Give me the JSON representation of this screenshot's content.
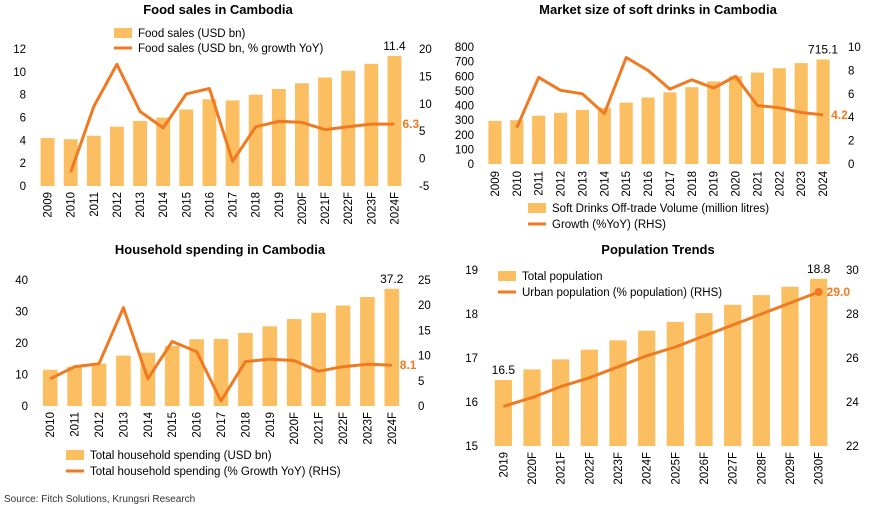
{
  "source": "Source: Fitch Solutions, Krungsri Research",
  "colors": {
    "bar": "#FBBF62",
    "line": "#F07A21",
    "label": "#F07A21",
    "text": "#000000"
  },
  "chart_data": [
    {
      "type": "bar",
      "title": "Food sales in Cambodia",
      "categories": [
        "2009",
        "2010",
        "2011",
        "2012",
        "2013",
        "2014",
        "2015",
        "2016",
        "2017",
        "2018",
        "2019",
        "2020F",
        "2021F",
        "2022F",
        "2023F",
        "2024F"
      ],
      "series": [
        {
          "name": "Food sales (USD bn)",
          "type": "bar",
          "axis": "left",
          "values": [
            4.2,
            4.1,
            4.4,
            5.2,
            5.7,
            6.0,
            6.7,
            7.6,
            7.5,
            8.0,
            8.5,
            9.0,
            9.5,
            10.1,
            10.7,
            11.4
          ]
        },
        {
          "name": "Food sales (USD bn, % growth YoY)",
          "type": "line",
          "axis": "right",
          "values": [
            null,
            -2.5,
            9.5,
            17.2,
            8.6,
            5.6,
            11.8,
            12.8,
            -0.5,
            5.8,
            6.8,
            6.6,
            5.3,
            5.8,
            6.3,
            6.3
          ]
        }
      ],
      "ylim_left": [
        0,
        12
      ],
      "yticks_left": [
        0,
        2,
        4,
        6,
        8,
        10,
        12
      ],
      "ylim_right": [
        -5,
        20
      ],
      "yticks_right": [
        -5,
        0,
        5,
        10,
        15,
        20
      ],
      "bar_end_label": "11.4",
      "line_end_label": "6.3",
      "legend_position": "top-center"
    },
    {
      "type": "bar",
      "title": "Market size of soft drinks in Cambodia",
      "categories": [
        "2009",
        "2010",
        "2011",
        "2012",
        "2013",
        "2014",
        "2015",
        "2016",
        "2017",
        "2018",
        "2019",
        "2020",
        "2021",
        "2022",
        "2023",
        "2024"
      ],
      "series": [
        {
          "name": "Soft Drinks Off-trade Volume (million litres)",
          "type": "bar",
          "axis": "left",
          "values": [
            295,
            300,
            330,
            350,
            370,
            385,
            420,
            455,
            490,
            525,
            565,
            600,
            625,
            655,
            690,
            715.1
          ]
        },
        {
          "name": "Growth (%YoY) (RHS)",
          "type": "line",
          "axis": "right",
          "values": [
            null,
            3.1,
            7.4,
            6.3,
            6.0,
            4.3,
            9.1,
            8.0,
            6.4,
            7.2,
            6.5,
            7.5,
            5.0,
            4.8,
            4.4,
            4.2
          ]
        }
      ],
      "ylim_left": [
        0,
        800
      ],
      "yticks_left": [
        0,
        100,
        200,
        300,
        400,
        500,
        600,
        700,
        800
      ],
      "ylim_right": [
        0,
        10
      ],
      "yticks_right": [
        0,
        2,
        4,
        6,
        8,
        10
      ],
      "bar_end_label": "715.1",
      "line_end_label": "4.2",
      "legend_position": "bottom"
    },
    {
      "type": "bar",
      "title": "Household spending in Cambodia",
      "categories": [
        "2010",
        "2011",
        "2012",
        "2013",
        "2014",
        "2015",
        "2016",
        "2017",
        "2018",
        "2019",
        "2020F",
        "2021F",
        "2022F",
        "2023F",
        "2024F"
      ],
      "series": [
        {
          "name": "Total household spending (USD bn)",
          "type": "bar",
          "axis": "left",
          "values": [
            11.5,
            12.5,
            13.5,
            16.0,
            16.9,
            19.1,
            21.2,
            21.3,
            23.2,
            25.3,
            27.6,
            29.6,
            31.9,
            34.6,
            37.2
          ]
        },
        {
          "name": "Total household spending (% Growth YoY) (RHS)",
          "type": "line",
          "axis": "right",
          "values": [
            5.4,
            7.8,
            8.4,
            19.5,
            5.4,
            12.8,
            10.8,
            1.0,
            8.8,
            9.3,
            9.0,
            6.9,
            7.8,
            8.3,
            8.1
          ]
        }
      ],
      "ylim_left": [
        0,
        40
      ],
      "yticks_left": [
        0,
        10,
        20,
        30,
        40
      ],
      "ylim_right": [
        0,
        25
      ],
      "yticks_right": [
        0,
        5,
        10,
        15,
        20,
        25
      ],
      "bar_end_label": "37.2",
      "line_end_label": "8.1",
      "legend_position": "bottom"
    },
    {
      "type": "bar",
      "title": "Population Trends",
      "categories": [
        "2019",
        "2020F",
        "2021F",
        "2022F",
        "2023F",
        "2024F",
        "2025F",
        "2026F",
        "2027F",
        "2028F",
        "2029F",
        "2030F"
      ],
      "series": [
        {
          "name": "Total population",
          "type": "bar",
          "axis": "left",
          "values": [
            16.5,
            16.74,
            16.97,
            17.19,
            17.4,
            17.62,
            17.82,
            18.02,
            18.21,
            18.43,
            18.62,
            18.8
          ]
        },
        {
          "name": "Urban population (% population) (RHS)",
          "type": "line",
          "axis": "right",
          "values": [
            23.8,
            24.2,
            24.7,
            25.1,
            25.6,
            26.1,
            26.5,
            27.0,
            27.5,
            28.0,
            28.5,
            29.0
          ]
        }
      ],
      "ylim_left": [
        15,
        19
      ],
      "yticks_left": [
        15,
        16,
        17,
        18,
        19
      ],
      "ylim_right": [
        22,
        30
      ],
      "yticks_right": [
        22,
        24,
        26,
        28,
        30
      ],
      "bar_start_label": "16.5",
      "bar_end_label": "18.8",
      "line_end_label": "29.0",
      "legend_position": "top-left"
    }
  ]
}
